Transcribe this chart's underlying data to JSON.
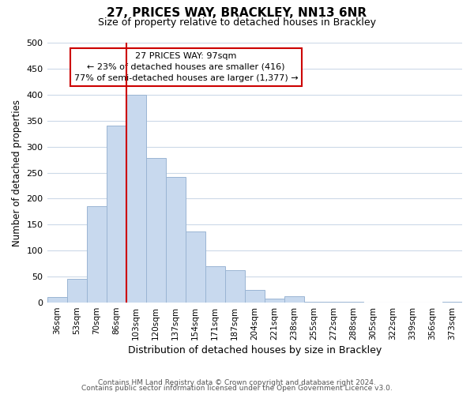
{
  "title": "27, PRICES WAY, BRACKLEY, NN13 6NR",
  "subtitle": "Size of property relative to detached houses in Brackley",
  "xlabel": "Distribution of detached houses by size in Brackley",
  "ylabel": "Number of detached properties",
  "bar_labels": [
    "36sqm",
    "53sqm",
    "70sqm",
    "86sqm",
    "103sqm",
    "120sqm",
    "137sqm",
    "154sqm",
    "171sqm",
    "187sqm",
    "204sqm",
    "221sqm",
    "238sqm",
    "255sqm",
    "272sqm",
    "288sqm",
    "305sqm",
    "322sqm",
    "339sqm",
    "356sqm",
    "373sqm"
  ],
  "bar_values": [
    10,
    46,
    185,
    340,
    400,
    278,
    242,
    137,
    70,
    62,
    25,
    7,
    12,
    2,
    1,
    1,
    0,
    0,
    0,
    0,
    2
  ],
  "bar_color": "#c8d9ee",
  "bar_edge_color": "#9ab5d3",
  "vline_x_index": 4,
  "vline_color": "#cc0000",
  "annotation_title": "27 PRICES WAY: 97sqm",
  "annotation_line1": "← 23% of detached houses are smaller (416)",
  "annotation_line2": "77% of semi-detached houses are larger (1,377) →",
  "annotation_box_color": "#ffffff",
  "annotation_box_edge": "#cc0000",
  "ylim": [
    0,
    500
  ],
  "yticks": [
    0,
    50,
    100,
    150,
    200,
    250,
    300,
    350,
    400,
    450,
    500
  ],
  "footer_line1": "Contains HM Land Registry data © Crown copyright and database right 2024.",
  "footer_line2": "Contains public sector information licensed under the Open Government Licence v3.0.",
  "background_color": "#ffffff",
  "grid_color": "#ccd9e8"
}
